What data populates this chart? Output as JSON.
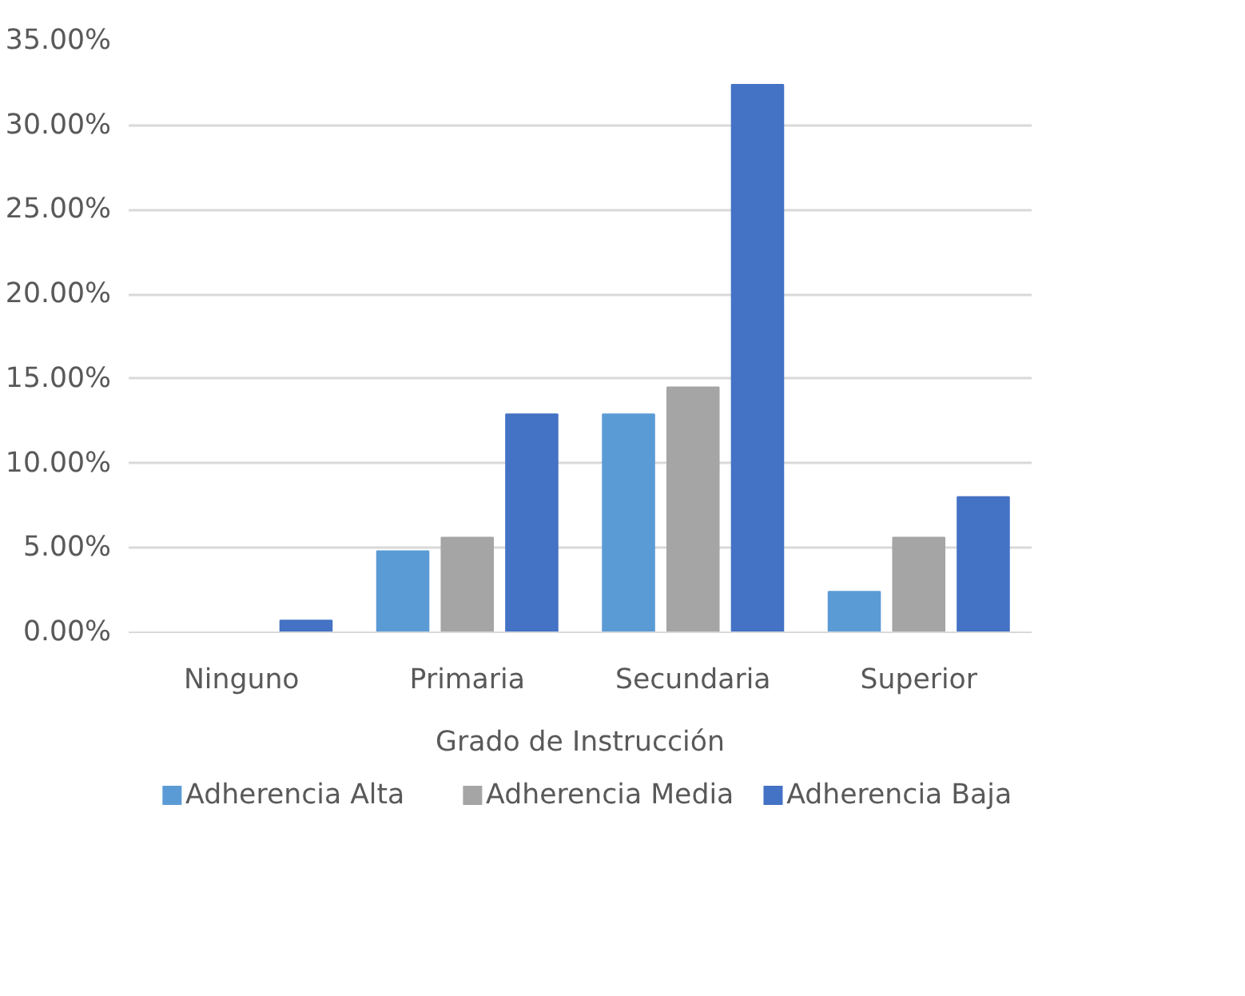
{
  "chart_data": {
    "type": "bar",
    "xlabel": "Grado de Instrucción",
    "categories": [
      "Ninguno",
      "Primaria",
      "Secundaria",
      "Superior"
    ],
    "series": [
      {
        "name": "Adherencia Alta",
        "color": "#5b9bd5",
        "values": [
          0,
          4.8,
          12.9,
          2.4
        ]
      },
      {
        "name": "Adherencia Media",
        "color": "#a5a5a5",
        "values": [
          0,
          5.6,
          14.5,
          5.6
        ]
      },
      {
        "name": "Adherencia Baja",
        "color": "#4472c4",
        "values": [
          0.7,
          12.9,
          32.4,
          8.0
        ]
      }
    ],
    "ylim": [
      0,
      35
    ],
    "yticks": [
      {
        "value": 0,
        "label": "0.00%"
      },
      {
        "value": 5,
        "label": "5.00%"
      },
      {
        "value": 10,
        "label": "10.00%"
      },
      {
        "value": 15,
        "label": "15.00%"
      },
      {
        "value": 20,
        "label": "20.00%"
      },
      {
        "value": 25,
        "label": "25.00%"
      },
      {
        "value": 30,
        "label": "30.00%"
      },
      {
        "value": 35,
        "label": "35.00%"
      }
    ],
    "grid": "y",
    "legend": "bottom"
  }
}
